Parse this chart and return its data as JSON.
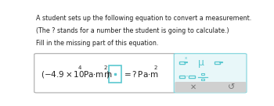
{
  "title_line1": "A student sets up the following equation to convert a measurement.",
  "title_line2": "(The ? stands for a number the student is going to calculate.)",
  "title_line3": "Fill in the missing part of this equation.",
  "blank_color": "#5bc8d0",
  "panel_bg": "#e8f7f9",
  "panel_border": "#7dd3db",
  "text_color": "#222222",
  "box_border": "#aaaaaa",
  "icon_color": "#5bc8d0",
  "bg_gray": "#d0d0d0"
}
